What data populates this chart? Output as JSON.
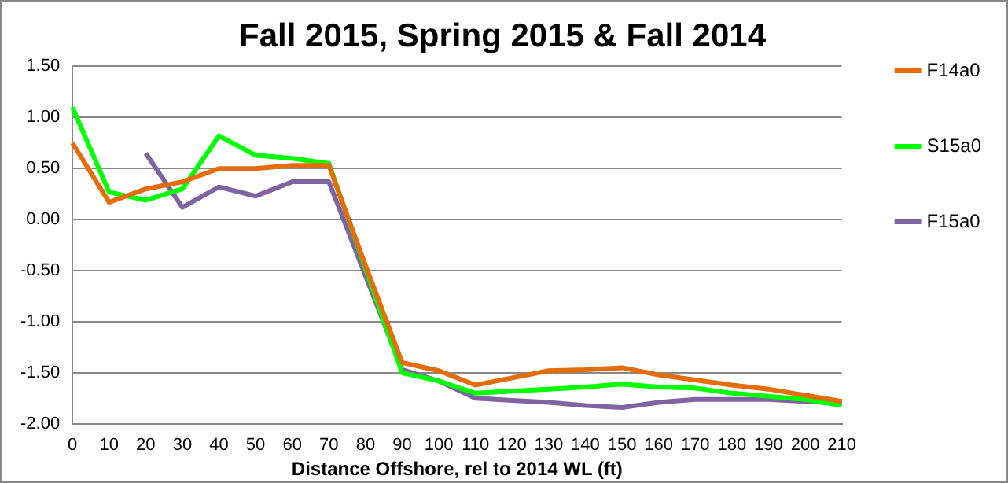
{
  "chart_data": {
    "type": "line",
    "title": "Fall 2015, Spring 2015 & Fall 2014",
    "xlabel": "Distance Offshore, rel to 2014 WL (ft)",
    "categories": [
      "0",
      "10",
      "20",
      "30",
      "40",
      "50",
      "60",
      "70",
      "80",
      "90",
      "100",
      "110",
      "120",
      "130",
      "140",
      "150",
      "160",
      "170",
      "180",
      "190",
      "200",
      "210"
    ],
    "series": [
      {
        "name": "F14a0",
        "color": "#e46c0a",
        "values": [
          0.75,
          0.17,
          0.3,
          0.37,
          0.5,
          0.5,
          0.53,
          0.53,
          -0.45,
          -1.4,
          -1.48,
          -1.62,
          -1.55,
          -1.48,
          -1.47,
          -1.45,
          -1.52,
          -1.57,
          -1.62,
          -1.66,
          -1.72,
          -1.78
        ]
      },
      {
        "name": "S15a0",
        "color": "#00ff00",
        "values": [
          1.1,
          0.27,
          0.19,
          0.3,
          0.82,
          0.63,
          0.6,
          0.55,
          -0.48,
          -1.5,
          -1.58,
          -1.7,
          -1.68,
          -1.66,
          -1.64,
          -1.61,
          -1.64,
          -1.65,
          -1.7,
          -1.73,
          -1.76,
          -1.82
        ]
      },
      {
        "name": "F15a0",
        "color": "#8064a2",
        "values": [
          null,
          null,
          0.65,
          0.12,
          0.32,
          0.23,
          0.37,
          0.37,
          -0.55,
          -1.47,
          -1.58,
          -1.75,
          -1.77,
          -1.79,
          -1.82,
          -1.84,
          -1.79,
          -1.76,
          -1.76,
          -1.76,
          -1.78,
          -1.8
        ]
      }
    ],
    "ylim": [
      -2,
      1.5
    ],
    "yticks": [
      {
        "value": -2,
        "label": "-2.00"
      },
      {
        "value": -1.5,
        "label": "-1.50"
      },
      {
        "value": -1,
        "label": "-1.00"
      },
      {
        "value": -0.5,
        "label": "-0.50"
      },
      {
        "value": 0,
        "label": "0.00"
      },
      {
        "value": 0.5,
        "label": "0.50"
      },
      {
        "value": 1,
        "label": "1.00"
      },
      {
        "value": 1.5,
        "label": "1.50"
      }
    ],
    "grid": "y",
    "legend": "right",
    "marker": "none",
    "line_style": "solid"
  }
}
